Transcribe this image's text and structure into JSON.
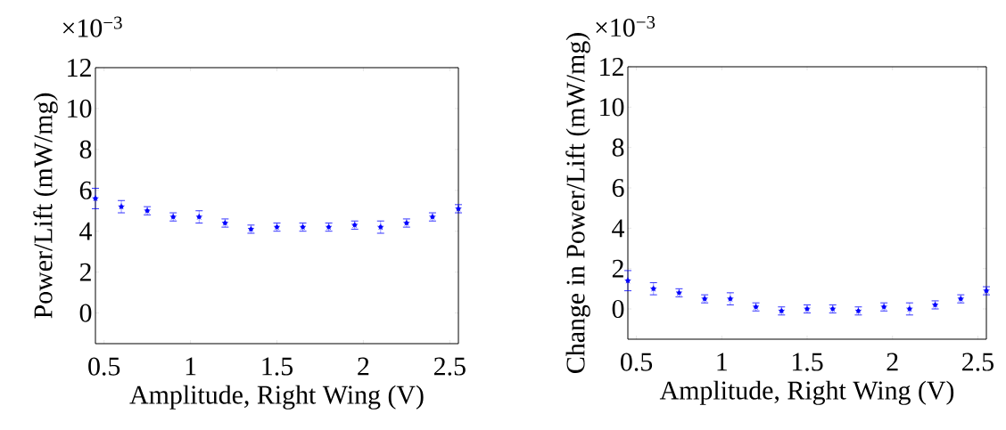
{
  "chart_data": [
    {
      "type": "scatter",
      "xlabel": "Amplitude, Right Wing (V)",
      "ylabel": "Power/Lift (mW/mg)",
      "color": "#0000ff",
      "marker": "star",
      "annotations": [
        "×10$^{−3}$"
      ],
      "xlim": [
        0.45,
        2.55
      ],
      "ylim": [
        -1.5,
        12
      ],
      "xticks": [
        0.5,
        1,
        1.5,
        2,
        2.5
      ],
      "yticks": [
        0,
        2,
        4,
        6,
        8,
        10,
        12
      ],
      "x": [
        0.45,
        0.6,
        0.75,
        0.9,
        1.05,
        1.2,
        1.35,
        1.5,
        1.65,
        1.8,
        1.95,
        2.1,
        2.25,
        2.4,
        2.55
      ],
      "values": [
        5.6,
        5.2,
        5.0,
        4.7,
        4.7,
        4.4,
        4.1,
        4.2,
        4.2,
        4.2,
        4.3,
        4.2,
        4.4,
        4.7,
        5.1
      ],
      "errors": [
        0.5,
        0.3,
        0.2,
        0.2,
        0.3,
        0.2,
        0.2,
        0.2,
        0.2,
        0.2,
        0.2,
        0.3,
        0.2,
        0.2,
        0.2
      ]
    },
    {
      "type": "scatter",
      "xlabel": "Amplitude, Right Wing (V)",
      "ylabel": "Change in Power/Lift (mW/mg)",
      "color": "#0000ff",
      "marker": "star",
      "annotations": [
        "×10$^{−3}$"
      ],
      "xlim": [
        0.45,
        2.55
      ],
      "ylim": [
        -1.5,
        12
      ],
      "xticks": [
        0.5,
        1,
        1.5,
        2,
        2.5
      ],
      "yticks": [
        0,
        2,
        4,
        6,
        8,
        10,
        12
      ],
      "x": [
        0.45,
        0.6,
        0.75,
        0.9,
        1.05,
        1.2,
        1.35,
        1.5,
        1.65,
        1.8,
        1.95,
        2.1,
        2.25,
        2.4,
        2.55
      ],
      "values": [
        1.4,
        1.0,
        0.8,
        0.5,
        0.5,
        0.1,
        -0.1,
        0.0,
        0.0,
        -0.1,
        0.1,
        0.0,
        0.2,
        0.5,
        0.9
      ],
      "errors": [
        0.5,
        0.3,
        0.2,
        0.2,
        0.3,
        0.2,
        0.2,
        0.2,
        0.2,
        0.2,
        0.2,
        0.3,
        0.2,
        0.2,
        0.2
      ]
    }
  ]
}
